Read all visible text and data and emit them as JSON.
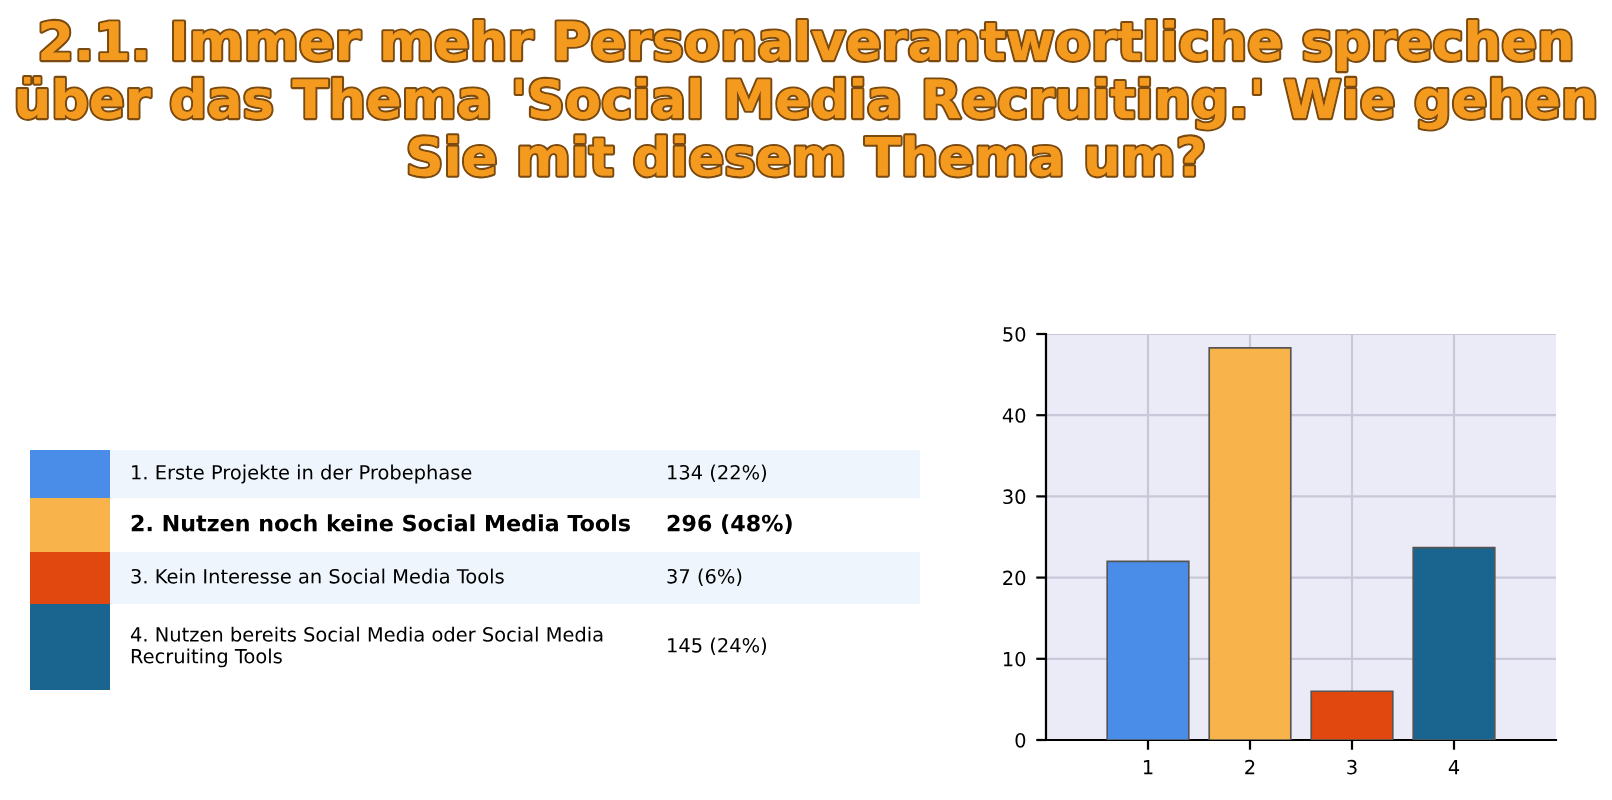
{
  "chart_data": {
    "type": "bar",
    "title": "2.1. Immer mehr Personalverantwortliche sprechen\nüber das Thema 'Social Media Recruiting.' Wie gehen\nSie mit diesem Thema um?",
    "categories": [
      "1",
      "2",
      "3",
      "4"
    ],
    "values": [
      22,
      48.3,
      6,
      23.7
    ],
    "colors": [
      "#4a8de8",
      "#f8b44a",
      "#e0480f",
      "#1a6490"
    ],
    "annotations": [
      "1. Erste Projekte in der Probephase",
      "134 (22%)",
      "2. Nutzen noch keine Social Media Tools",
      "296 (48%)",
      "3. Kein Interesse an Social Media Tools",
      "37 (6%)",
      "4. Nutzen bereits Social Media oder Social Media\nRecruiting Tools",
      "145 (24%)"
    ],
    "ylim": [
      0,
      50
    ],
    "yticks": [
      0,
      10,
      20,
      30,
      40,
      50
    ],
    "grid": true
  }
}
